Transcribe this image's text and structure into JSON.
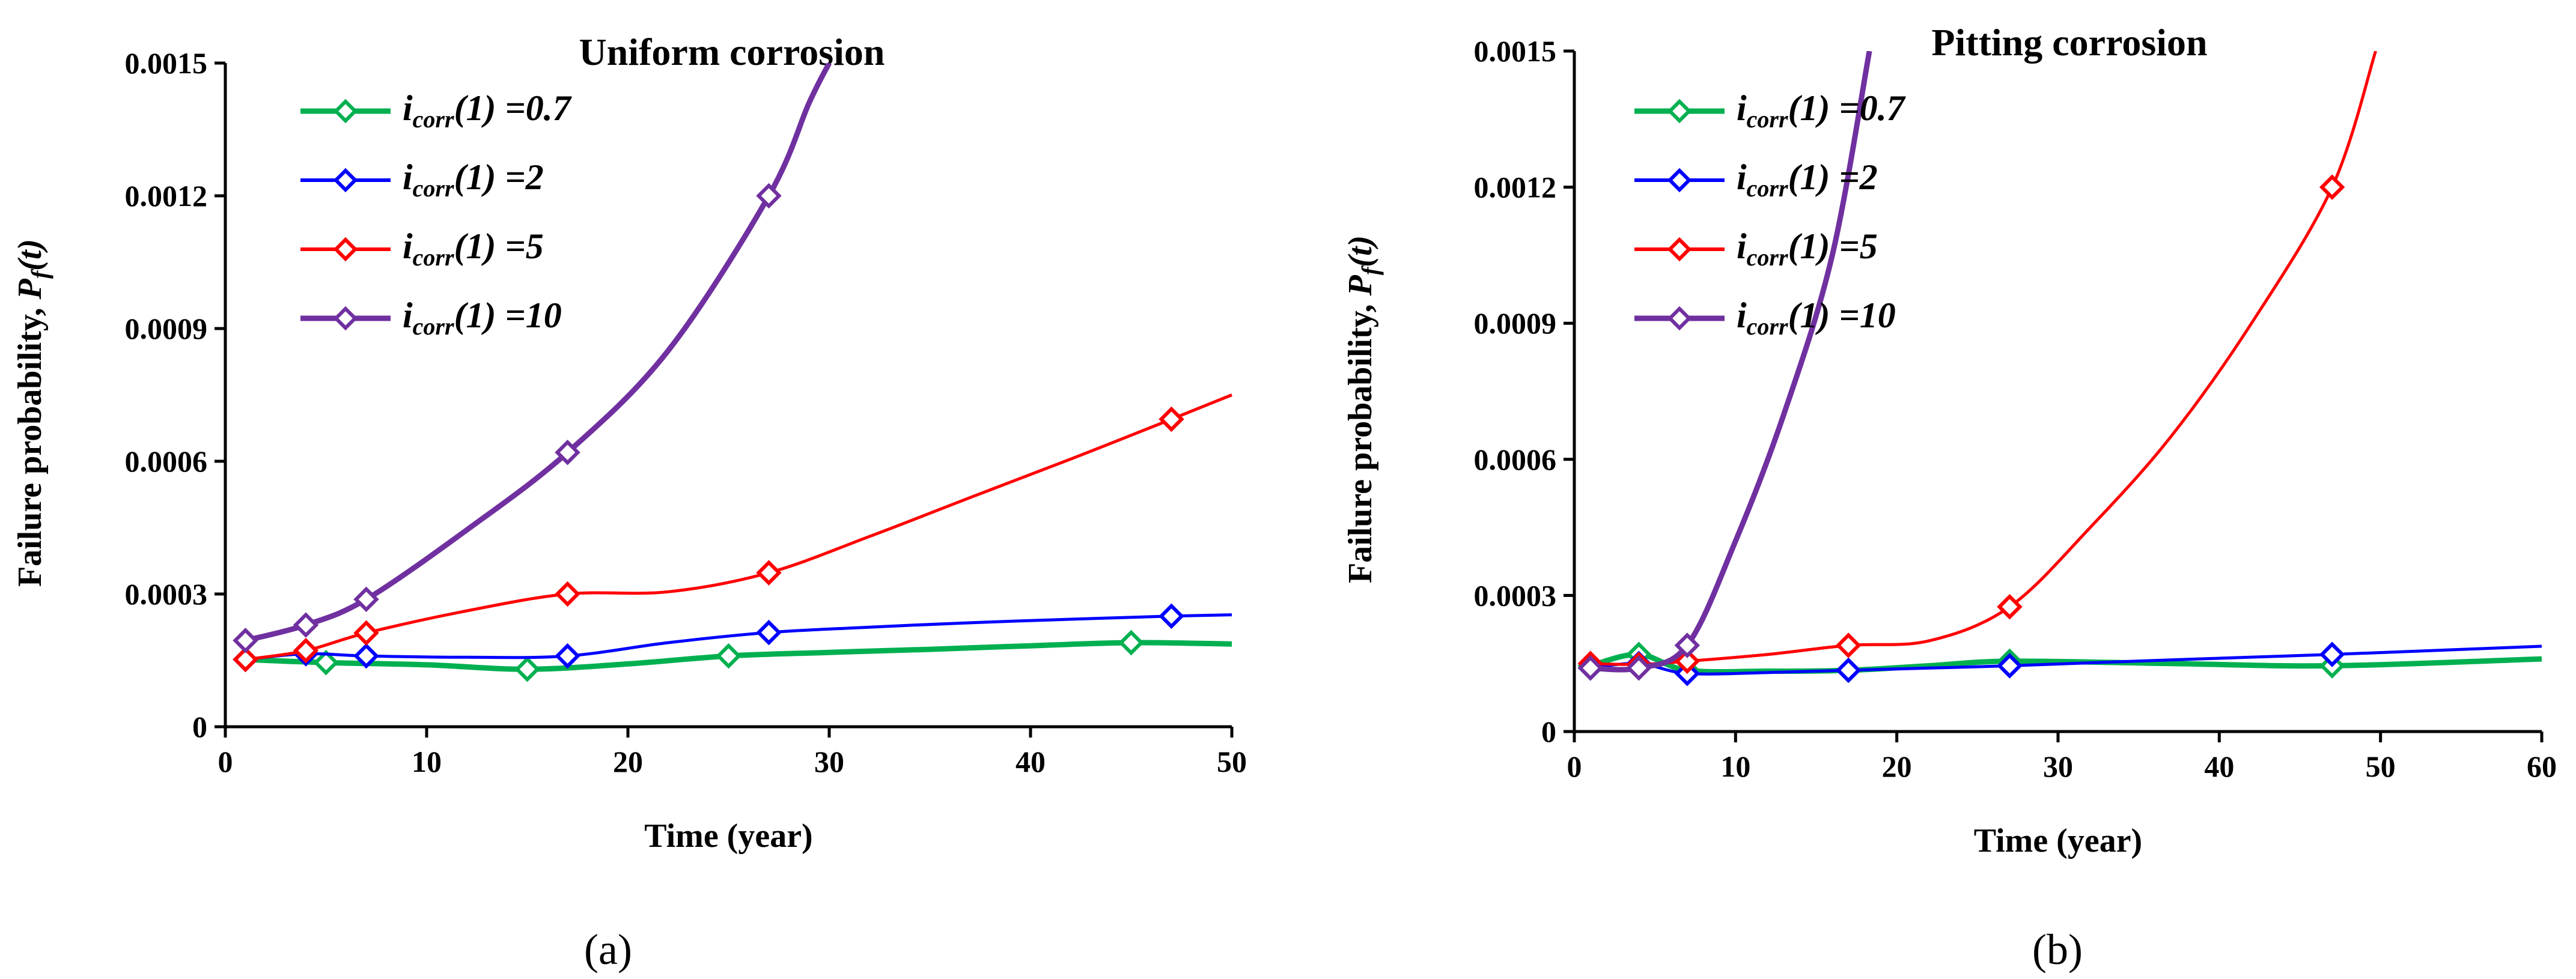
{
  "chart_data": [
    {
      "type": "line",
      "panel": "a",
      "title": "Uniform corrosion",
      "xlabel": "Time (year)",
      "ylabel_prefix": "Failure probability, ",
      "ylabel_symbol": "P",
      "ylabel_sub": "f",
      "ylabel_suffix": "(t)",
      "xlim": [
        0,
        50
      ],
      "ylim": [
        0,
        0.0015
      ],
      "xticks": [
        0,
        10,
        20,
        30,
        40,
        50
      ],
      "xtick_labels": [
        "0",
        "10",
        "20",
        "30",
        "40",
        "50"
      ],
      "yticks": [
        0,
        0.0003,
        0.0006,
        0.0009,
        0.0012,
        0.0015
      ],
      "ytick_labels": [
        "0",
        "0.0003",
        "0.0006",
        "0.0009",
        "0.0012",
        "0.0015"
      ],
      "grid": false,
      "legend_position": "top-left",
      "caption": "(a)",
      "series": [
        {
          "name": "i_corr(1) =0.7",
          "legend_main": "i",
          "legend_sub": "corr",
          "legend_rest": "(1) =0.7",
          "color": "#00b050",
          "marker_x": [
            1,
            5,
            15,
            25,
            45
          ],
          "marker_y": [
            0.000152,
            0.000145,
            0.00013,
            0.00016,
            0.00019
          ],
          "curve_x": [
            1,
            5,
            10,
            15,
            20,
            25,
            30,
            35,
            40,
            45,
            50
          ],
          "curve_y": [
            0.000152,
            0.000145,
            0.00014,
            0.00013,
            0.000142,
            0.00016,
            0.000168,
            0.000175,
            0.000183,
            0.00019,
            0.000187
          ]
        },
        {
          "name": "i_corr(1) =2",
          "legend_main": "i",
          "legend_sub": "corr",
          "legend_rest": "(1) =2",
          "color": "#0000ff",
          "marker_x": [
            1,
            4,
            7,
            17,
            27,
            47
          ],
          "marker_y": [
            0.000152,
            0.000165,
            0.00016,
            0.00016,
            0.000213,
            0.00025
          ],
          "curve_x": [
            1,
            4,
            7,
            12,
            17,
            22,
            27,
            32,
            37,
            42,
            47,
            50
          ],
          "curve_y": [
            0.000152,
            0.000165,
            0.00016,
            0.000157,
            0.00016,
            0.00019,
            0.000213,
            0.000225,
            0.000235,
            0.000243,
            0.00025,
            0.000253
          ]
        },
        {
          "name": "i_corr(1) =5",
          "legend_main": "i",
          "legend_sub": "corr",
          "legend_rest": "(1) =5",
          "color": "#ff0000",
          "marker_x": [
            1,
            4,
            7,
            17,
            27,
            47
          ],
          "marker_y": [
            0.000152,
            0.000172,
            0.000212,
            0.0003,
            0.000348,
            0.000695
          ],
          "curve_x": [
            1,
            4,
            7,
            12,
            17,
            22,
            27,
            32,
            37,
            42,
            47,
            50
          ],
          "curve_y": [
            0.000152,
            0.000172,
            0.000212,
            0.000262,
            0.0003,
            0.000305,
            0.000348,
            0.00043,
            0.000518,
            0.000605,
            0.000695,
            0.00075
          ]
        },
        {
          "name": "i_corr(1) =10",
          "legend_main": "i",
          "legend_sub": "corr",
          "legend_rest": "(1) =10",
          "color": "#7030a0",
          "marker_x": [
            1,
            4,
            7,
            17,
            27
          ],
          "marker_y": [
            0.000195,
            0.00023,
            0.000288,
            0.00062,
            0.0012
          ],
          "curve_x": [
            1,
            4,
            7,
            12,
            17,
            22,
            27,
            29,
            30
          ],
          "curve_y": [
            0.000195,
            0.00023,
            0.000288,
            0.000445,
            0.00062,
            0.00085,
            0.0012,
            0.00141,
            0.0015
          ]
        }
      ]
    },
    {
      "type": "line",
      "panel": "b",
      "title": "Pitting corrosion",
      "xlabel": "Time (year)",
      "ylabel_prefix": "Failure probability, ",
      "ylabel_symbol": "P",
      "ylabel_sub": "f",
      "ylabel_suffix": "(t)",
      "xlim": [
        0,
        60
      ],
      "ylim": [
        0,
        0.0015
      ],
      "xticks": [
        0,
        10,
        20,
        30,
        40,
        50,
        60
      ],
      "xtick_labels": [
        "0",
        "10",
        "20",
        "30",
        "40",
        "50",
        "60"
      ],
      "yticks": [
        0,
        0.0003,
        0.0006,
        0.0009,
        0.0012,
        0.0015
      ],
      "ytick_labels": [
        "0",
        "0.0003",
        "0.0006",
        "0.0009",
        "0.0012",
        "0.0015"
      ],
      "grid": false,
      "legend_position": "top-left",
      "caption": "(b)",
      "series": [
        {
          "name": "i_corr(1) =0.7",
          "legend_main": "i",
          "legend_sub": "corr",
          "legend_rest": "(1) =0.7",
          "color": "#00b050",
          "marker_x": [
            1,
            4,
            7,
            17,
            27,
            47
          ],
          "marker_y": [
            0.000145,
            0.00017,
            0.000135,
            0.000135,
            0.000155,
            0.000145
          ],
          "curve_x": [
            1,
            4,
            7,
            12,
            17,
            22,
            27,
            37,
            47,
            60
          ],
          "curve_y": [
            0.000145,
            0.00017,
            0.000135,
            0.000133,
            0.000135,
            0.000145,
            0.000155,
            0.00015,
            0.000145,
            0.00016
          ]
        },
        {
          "name": "i_corr(1) =2",
          "legend_main": "i",
          "legend_sub": "corr",
          "legend_rest": "(1) =2",
          "color": "#0000ff",
          "marker_x": [
            1,
            4,
            7,
            17,
            27,
            47
          ],
          "marker_y": [
            0.00014,
            0.00015,
            0.000128,
            0.000135,
            0.000145,
            0.00017
          ],
          "curve_x": [
            1,
            4,
            7,
            12,
            17,
            22,
            27,
            37,
            47,
            60
          ],
          "curve_y": [
            0.00014,
            0.00015,
            0.000128,
            0.00013,
            0.000135,
            0.00014,
            0.000145,
            0.000158,
            0.00017,
            0.000188
          ]
        },
        {
          "name": "i_corr(1) =5",
          "legend_main": "i",
          "legend_sub": "corr",
          "legend_rest": "(1) =5",
          "color": "#ff0000",
          "marker_x": [
            1,
            4,
            7,
            17,
            27,
            47
          ],
          "marker_y": [
            0.00015,
            0.000148,
            0.000155,
            0.00019,
            0.000275,
            0.0012
          ],
          "curve_x": [
            1,
            4,
            7,
            12,
            17,
            22,
            27,
            32,
            37,
            42,
            47,
            49.7
          ],
          "curve_y": [
            0.00015,
            0.000148,
            0.000155,
            0.00017,
            0.00019,
            0.0002,
            0.000275,
            0.00045,
            0.00065,
            0.0009,
            0.0012,
            0.0015
          ]
        },
        {
          "name": "i_corr(1) =10",
          "legend_main": "i",
          "legend_sub": "corr",
          "legend_rest": "(1) =10",
          "color": "#7030a0",
          "marker_x": [
            1,
            4,
            7
          ],
          "marker_y": [
            0.00014,
            0.00014,
            0.00019
          ],
          "curve_x": [
            1,
            4,
            7,
            10,
            13,
            16,
            18.3
          ],
          "curve_y": [
            0.00014,
            0.00014,
            0.00019,
            0.00042,
            0.0007,
            0.00105,
            0.0015
          ]
        }
      ]
    }
  ]
}
